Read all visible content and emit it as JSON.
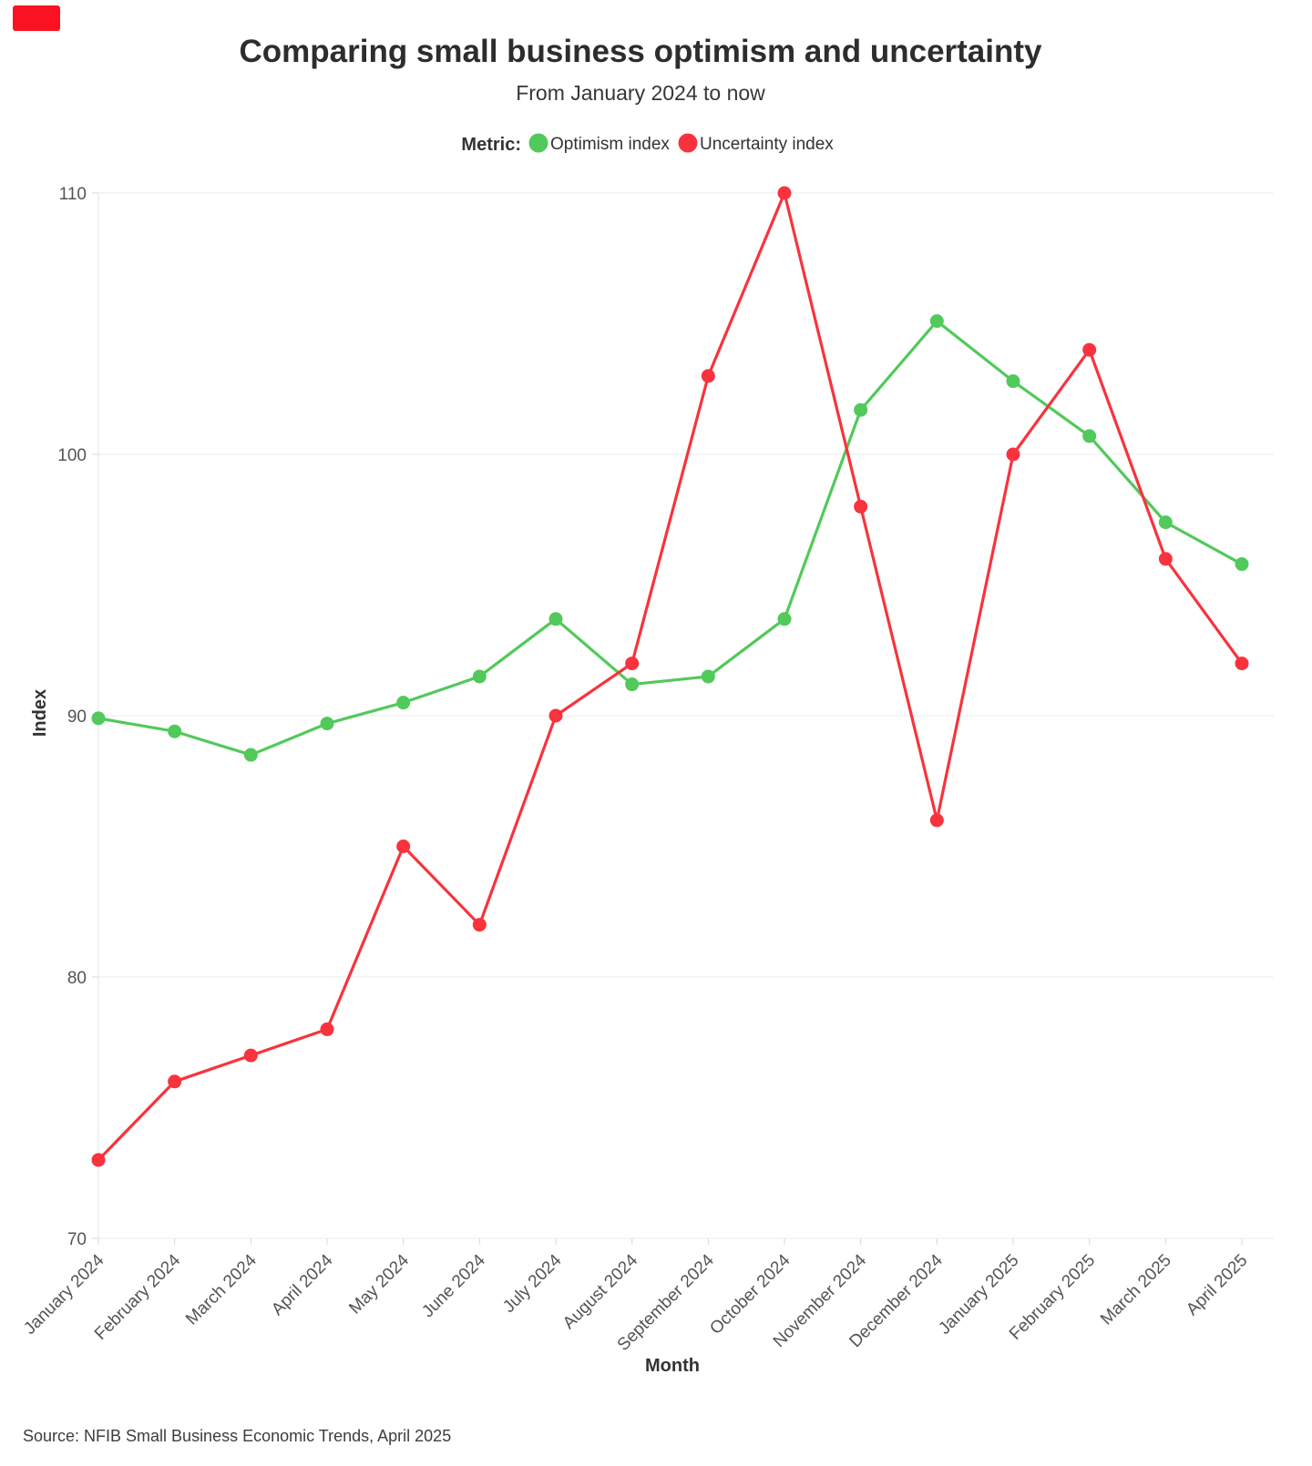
{
  "header": {
    "title": "Comparing small business optimism and uncertainty",
    "subtitle": "From January 2024 to now",
    "legend_label": "Metric:"
  },
  "chart_data": {
    "type": "line",
    "title": "Comparing small business optimism and uncertainty",
    "subtitle": "From January 2024 to now",
    "xlabel": "Month",
    "ylabel": "Index",
    "ylim": [
      70,
      110
    ],
    "yticks": [
      70,
      80,
      90,
      100,
      110
    ],
    "grid": "horizontal",
    "legend_position": "top",
    "x": [
      "January 2024",
      "February 2024",
      "March 2024",
      "April 2024",
      "May 2024",
      "June 2024",
      "July 2024",
      "August 2024",
      "September 2024",
      "October 2024",
      "November 2024",
      "December 2024",
      "January 2025",
      "February 2025",
      "March 2025",
      "April 2025"
    ],
    "series": [
      {
        "name": "Optimism index",
        "color": "#52c95b",
        "values": [
          89.9,
          89.4,
          88.5,
          89.7,
          90.5,
          91.5,
          93.7,
          91.2,
          91.5,
          93.7,
          101.7,
          105.1,
          102.8,
          100.7,
          97.4,
          95.8
        ]
      },
      {
        "name": "Uncertainty index",
        "color": "#f8333d",
        "values": [
          73,
          76,
          77,
          78,
          85,
          82,
          90,
          92,
          103,
          110,
          98,
          86,
          100,
          104,
          96,
          92
        ]
      }
    ]
  },
  "footer": {
    "source": "Source: NFIB Small Business Economic Trends, April 2025"
  }
}
